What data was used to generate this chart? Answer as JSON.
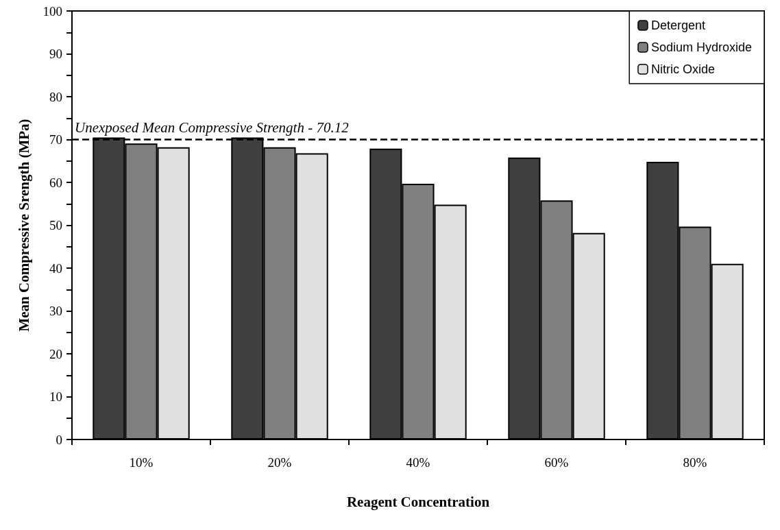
{
  "chart_data": {
    "type": "bar",
    "xlabel": "Reagent Concentration",
    "ylabel": "Mean Compressive Srength (MPa)",
    "categories": [
      "10%",
      "20%",
      "40%",
      "60%",
      "80%"
    ],
    "series": [
      {
        "name": "Detergent",
        "color": "#404040",
        "values": [
          70.5,
          70.5,
          67.9,
          65.8,
          64.8
        ]
      },
      {
        "name": "Sodium Hydroxide",
        "color": "#808080",
        "values": [
          69.1,
          68.2,
          59.7,
          55.8,
          49.7
        ]
      },
      {
        "name": "Nitric Oxide",
        "color": "#e0e0e0",
        "values": [
          68.2,
          66.8,
          54.8,
          48.2,
          41.0
        ]
      }
    ],
    "ylim": [
      0,
      100
    ],
    "yticks": [
      0,
      {
        "value": 5,
        "label": null
      },
      10,
      {
        "value": 15,
        "label": null
      },
      20,
      {
        "value": 25,
        "label": null
      },
      30,
      {
        "value": 35,
        "label": null
      },
      40,
      {
        "value": 45,
        "label": null
      },
      50,
      {
        "value": 55,
        "label": null
      },
      60,
      {
        "value": 65,
        "label": null
      },
      70,
      {
        "value": 75,
        "label": null
      },
      80,
      {
        "value": 85,
        "label": null
      },
      90,
      {
        "value": 95,
        "label": null
      },
      100
    ],
    "ref_lines": [
      {
        "axis": "y",
        "value": 70.12,
        "label": "Unexposed Mean Compressive Strength - 70.12",
        "color": "#000000",
        "line_style": "dashed"
      }
    ],
    "grid": false,
    "legend": "top right"
  }
}
